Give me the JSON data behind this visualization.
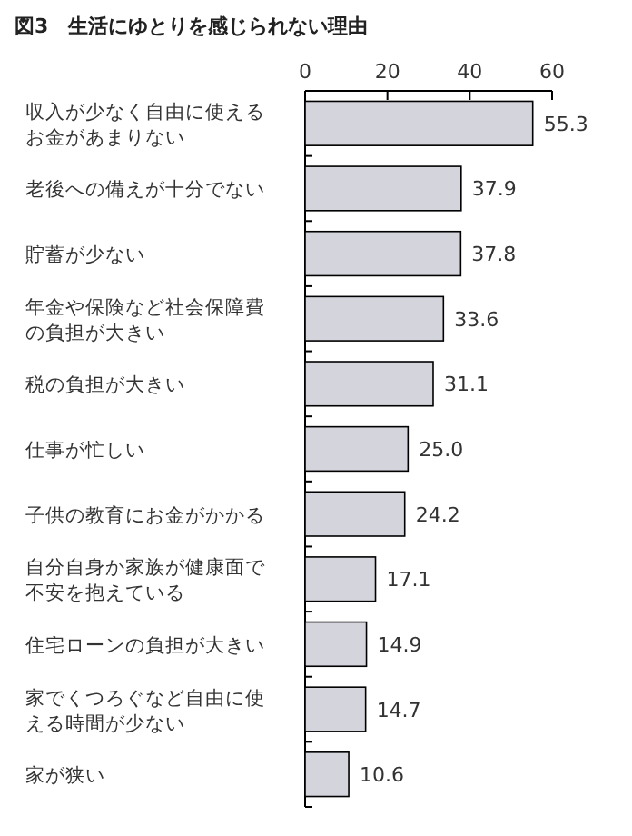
{
  "chart_data": {
    "type": "bar",
    "orientation": "horizontal",
    "title": "図3　生活にゆとりを感じられない理由",
    "categories": [
      "収入が少なく自由に使えるお金があまりない",
      "老後への備えが十分でない",
      "貯蓄が少ない",
      "年金や保険など社会保障費の負担が大きい",
      "税の負担が大きい",
      "仕事が忙しい",
      "子供の教育にお金がかかる",
      "自分自身か家族が健康面で不安を抱えている",
      "住宅ローンの負担が大きい",
      "家でくつろぐなど自由に使える時間が少ない",
      "家が狭い"
    ],
    "values": [
      55.3,
      37.9,
      37.8,
      33.6,
      31.1,
      25.0,
      24.2,
      17.1,
      14.9,
      14.7,
      10.6
    ],
    "value_labels": [
      "55.3",
      "37.9",
      "37.8",
      "33.6",
      "31.1",
      "25.0",
      "24.2",
      "17.1",
      "14.9",
      "14.7",
      "10.6"
    ],
    "color": "#d4d4dc",
    "xlim": [
      0,
      60
    ],
    "xticks": [
      0,
      20,
      40,
      60
    ],
    "grid": false
  }
}
